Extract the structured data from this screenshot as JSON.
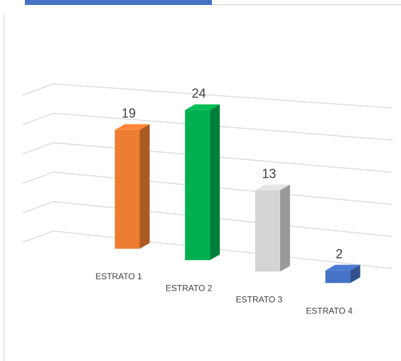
{
  "chart_data": {
    "type": "bar3d",
    "categories": [
      "ESTRATO 1",
      "ESTRATO 2",
      "ESTRATO 3",
      "ESTRATO 4"
    ],
    "values": [
      19,
      24,
      13,
      2
    ],
    "colors": [
      "#ed7d31",
      "#00b050",
      "#d4d4d4",
      "#4472c4"
    ],
    "ylim": [
      0,
      25
    ],
    "yticks": [
      0,
      5,
      10,
      15,
      20,
      25
    ],
    "grid": true
  }
}
